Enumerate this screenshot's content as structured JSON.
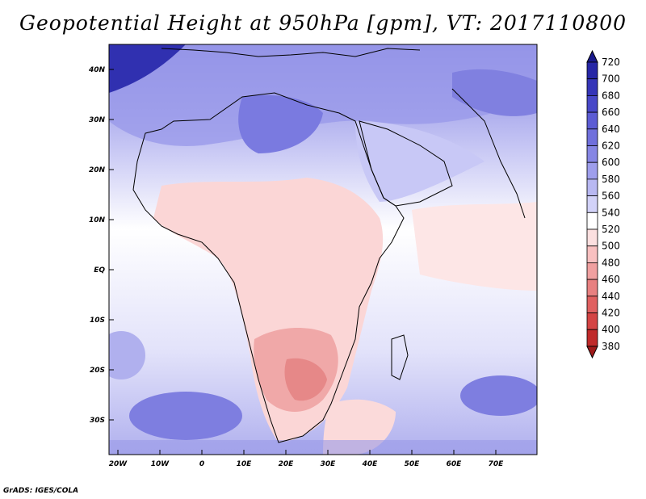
{
  "title": "Geopotential Height at 950hPa [gpm], VT: 2017110800",
  "credit": "GrADS: IGES/COLA",
  "map": {
    "lat_labels": [
      "40N",
      "30N",
      "20N",
      "10N",
      "EQ",
      "10S",
      "20S",
      "30S"
    ],
    "lon_labels": [
      "20W",
      "10W",
      "0",
      "10E",
      "20E",
      "30E",
      "40E",
      "50E",
      "60E",
      "70E"
    ]
  },
  "colorbar": {
    "levels": [
      "720",
      "700",
      "680",
      "660",
      "640",
      "620",
      "600",
      "580",
      "560",
      "540",
      "520",
      "500",
      "480",
      "460",
      "440",
      "420",
      "400",
      "380"
    ],
    "colors": [
      "#1a1a8c",
      "#2626a6",
      "#3535b8",
      "#4848c8",
      "#5c5cd4",
      "#7070dc",
      "#8686e4",
      "#9e9eec",
      "#b8b8f2",
      "#d2d2f8",
      "#ffffff",
      "#fce0e0",
      "#f8c0c0",
      "#f0a0a0",
      "#e88080",
      "#e06060",
      "#d44444",
      "#c02a2a",
      "#a01a1a"
    ]
  }
}
